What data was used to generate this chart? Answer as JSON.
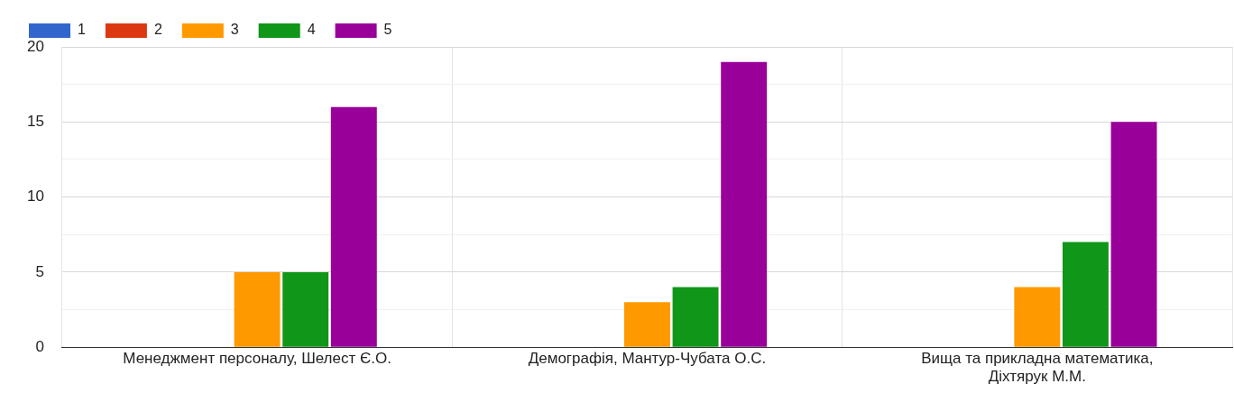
{
  "chart_data": {
    "type": "bar",
    "categories": [
      "Менеджмент персоналу, Шелест Є.О.",
      "Демографія, Мантур-Чубата О.С.",
      "Вища та прикладна математика, Діхтярук М.М."
    ],
    "series": [
      {
        "name": "1",
        "color": "#3366cc",
        "values": [
          0,
          0,
          0
        ]
      },
      {
        "name": "2",
        "color": "#dc3912",
        "values": [
          0,
          0,
          0
        ]
      },
      {
        "name": "3",
        "color": "#ff9900",
        "values": [
          5,
          3,
          4
        ]
      },
      {
        "name": "4",
        "color": "#109618",
        "values": [
          5,
          4,
          7
        ]
      },
      {
        "name": "5",
        "color": "#990099",
        "values": [
          16,
          19,
          15
        ]
      }
    ],
    "ylim": [
      0,
      20
    ],
    "yticks": [
      0,
      {
        "value": 2.5,
        "label": null
      },
      5,
      {
        "value": 7.5,
        "label": null
      },
      10,
      {
        "value": 12.5,
        "label": null
      },
      15,
      {
        "value": 17.5,
        "label": null
      },
      20
    ],
    "grid": true,
    "legend": "top left"
  }
}
